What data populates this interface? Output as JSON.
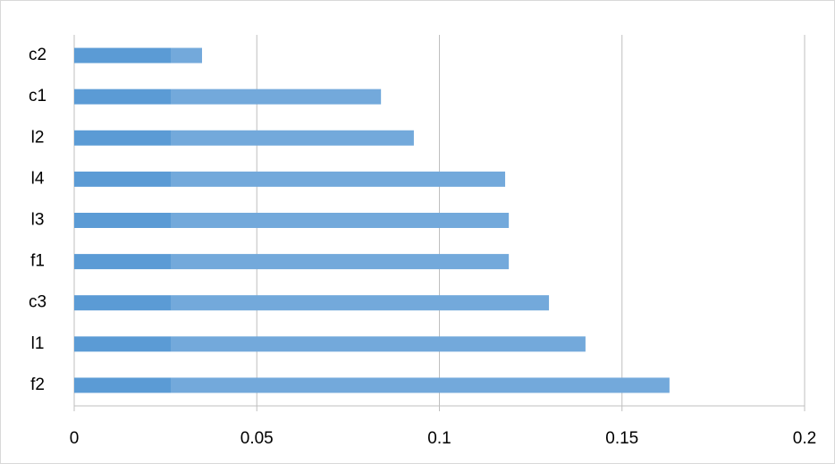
{
  "chart_data": {
    "type": "barh",
    "categories": [
      "c2",
      "c1",
      "l2",
      "l4",
      "l3",
      "f1",
      "c3",
      "l1",
      "f2"
    ],
    "values": [
      0.035,
      0.084,
      0.093,
      0.118,
      0.119,
      0.119,
      0.13,
      0.14,
      0.163
    ],
    "color": "#5b9bd5",
    "xlim": [
      0,
      0.2
    ],
    "xticks": [
      0,
      0.05,
      0.1,
      0.15,
      0.2
    ],
    "grid": true
  }
}
